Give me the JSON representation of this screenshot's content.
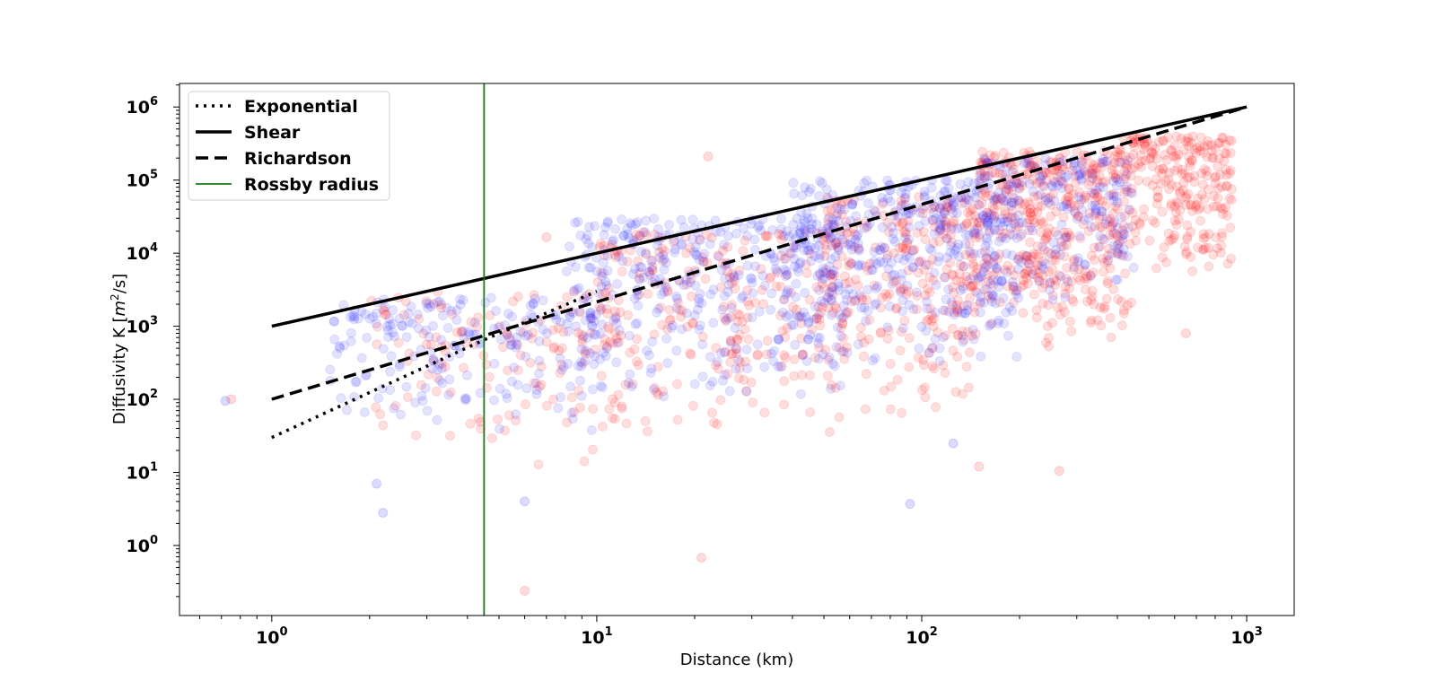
{
  "chart_data": {
    "type": "scatter",
    "title": "",
    "xlabel": "Distance (km)",
    "ylabel": "Diffusivity K [m²/s]",
    "ylabel_parts": {
      "base": "Diffusivity K [",
      "var": "m",
      "sup": "2",
      "rest": "/s]"
    },
    "x_scale": "log",
    "y_scale": "log",
    "xlim": [
      0.52,
      1400
    ],
    "ylim": [
      0.11,
      2100000
    ],
    "grid": false,
    "legend_position": "top-left",
    "x_ticks": [
      {
        "value": 1,
        "base": "10",
        "exp": "0"
      },
      {
        "value": 10,
        "base": "10",
        "exp": "1"
      },
      {
        "value": 100,
        "base": "10",
        "exp": "2"
      },
      {
        "value": 1000,
        "base": "10",
        "exp": "3"
      }
    ],
    "y_ticks": [
      {
        "value": 1,
        "base": "10",
        "exp": "0"
      },
      {
        "value": 10,
        "base": "10",
        "exp": "1"
      },
      {
        "value": 100,
        "base": "10",
        "exp": "2"
      },
      {
        "value": 1000,
        "base": "10",
        "exp": "3"
      },
      {
        "value": 10000,
        "base": "10",
        "exp": "4"
      },
      {
        "value": 100000,
        "base": "10",
        "exp": "5"
      },
      {
        "value": 1000000,
        "base": "10",
        "exp": "6"
      }
    ],
    "lines": [
      {
        "name": "Exponential",
        "style": "dotted",
        "color": "#000000",
        "points": [
          [
            1,
            30
          ],
          [
            4.5,
            650
          ],
          [
            10,
            3000
          ]
        ]
      },
      {
        "name": "Shear",
        "style": "solid",
        "color": "#000000",
        "points": [
          [
            1,
            1000
          ],
          [
            1000,
            1000000
          ]
        ]
      },
      {
        "name": "Richardson",
        "style": "dashed",
        "color": "#000000",
        "points": [
          [
            1,
            100
          ],
          [
            1000,
            1000000
          ]
        ]
      },
      {
        "name": "Rossby radius",
        "style": "vertical",
        "color": "#1a7a1a",
        "x": 4.5
      }
    ],
    "scatter_series": [
      {
        "color": "#ff0000",
        "opacity": 0.13,
        "clusters": [
          {
            "x": [
              2,
              12
            ],
            "y": [
              10,
              3000
            ],
            "n": 140
          },
          {
            "x": [
              10,
              60
            ],
            "y": [
              30,
              20000
            ],
            "n": 260
          },
          {
            "x": [
              50,
              150
            ],
            "y": [
              50,
              60000
            ],
            "n": 260
          },
          {
            "x": [
              150,
              400
            ],
            "y": [
              1000,
              250000
            ],
            "n": 340
          },
          {
            "x": [
              400,
              900
            ],
            "y": [
              5000,
              400000
            ],
            "n": 260
          },
          {
            "x": [
              120,
              450
            ],
            "y": [
              300,
              10000
            ],
            "n": 90
          }
        ]
      },
      {
        "color": "#0000ff",
        "opacity": 0.11,
        "clusters": [
          {
            "x": [
              1.5,
              10
            ],
            "y": [
              30,
              2500
            ],
            "n": 200
          },
          {
            "x": [
              8,
              60
            ],
            "y": [
              100,
              30000
            ],
            "n": 380
          },
          {
            "x": [
              40,
              200
            ],
            "y": [
              300,
              100000
            ],
            "n": 380
          },
          {
            "x": [
              150,
              450
            ],
            "y": [
              2000,
              200000
            ],
            "n": 200
          }
        ]
      }
    ],
    "outliers": [
      {
        "x": 22,
        "y": 210000,
        "color": "#ff0000"
      },
      {
        "x": 0.72,
        "y": 95,
        "color": "#0000ff"
      },
      {
        "x": 0.75,
        "y": 100,
        "color": "#ff0000"
      },
      {
        "x": 2.1,
        "y": 7,
        "color": "#0000ff"
      },
      {
        "x": 2.2,
        "y": 2.8,
        "color": "#0000ff"
      },
      {
        "x": 6,
        "y": 0.24,
        "color": "#ff0000"
      },
      {
        "x": 21,
        "y": 0.68,
        "color": "#ff0000"
      },
      {
        "x": 6,
        "y": 4,
        "color": "#0000ff"
      },
      {
        "x": 92,
        "y": 3.7,
        "color": "#0000ff"
      },
      {
        "x": 265,
        "y": 10.5,
        "color": "#ff0000"
      },
      {
        "x": 150,
        "y": 12,
        "color": "#ff0000"
      },
      {
        "x": 7,
        "y": 16500,
        "color": "#ff0000"
      },
      {
        "x": 650,
        "y": 800,
        "color": "#ff0000"
      },
      {
        "x": 125,
        "y": 25,
        "color": "#0000ff"
      }
    ]
  }
}
